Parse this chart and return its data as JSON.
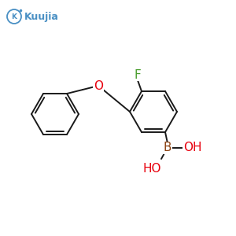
{
  "bg_color": "#ffffff",
  "bond_color": "#1a1a1a",
  "F_color": "#4a9e2f",
  "O_color": "#e8000d",
  "B_label_color": "#8B4010",
  "OH_color": "#e8000d",
  "logo_circle_color": "#4a90c4",
  "logo_text_color": "#4a90c4",
  "logo_text": "Kuujia",
  "F_label": "F",
  "O_label": "O",
  "B_label": "B",
  "OH_label": "OH",
  "HO_label": "HO",
  "line_width": 1.4,
  "font_size": 11
}
